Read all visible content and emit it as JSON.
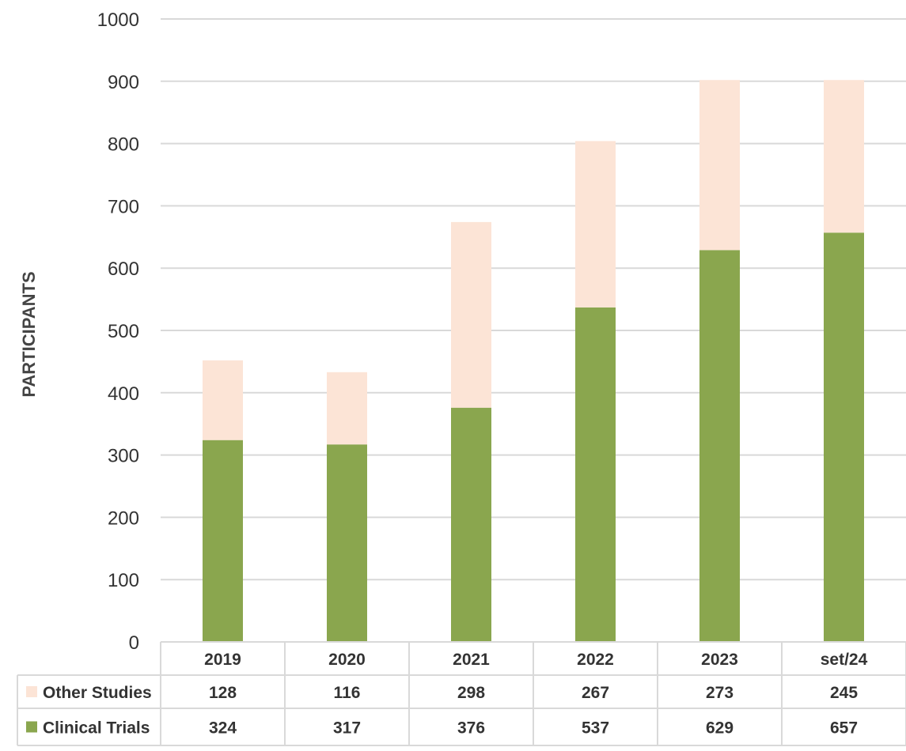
{
  "chart_data": {
    "type": "bar",
    "stacked": true,
    "title": "",
    "xlabel": "",
    "ylabel": "PARTICIPANTS",
    "ylim": [
      0,
      1000
    ],
    "yticks": [
      0,
      100,
      200,
      300,
      400,
      500,
      600,
      700,
      800,
      900,
      1000
    ],
    "grid": true,
    "legend_placement": "data-table-left",
    "categories": [
      "2019",
      "2020",
      "2021",
      "2022",
      "2023",
      "set/24"
    ],
    "series": [
      {
        "name": "Clinical Trials",
        "color": "#8aa64e",
        "values": [
          324,
          317,
          376,
          537,
          629,
          657
        ]
      },
      {
        "name": "Other Studies",
        "color": "#fce4d6",
        "values": [
          128,
          116,
          298,
          267,
          273,
          245
        ]
      }
    ],
    "table_rows": [
      {
        "name": "Other Studies",
        "color": "#fce4d6",
        "values": [
          "128",
          "116",
          "298",
          "267",
          "273",
          "245"
        ]
      },
      {
        "name": "Clinical Trials",
        "color": "#8aa64e",
        "values": [
          "324",
          "317",
          "376",
          "537",
          "629",
          "657"
        ]
      }
    ]
  }
}
